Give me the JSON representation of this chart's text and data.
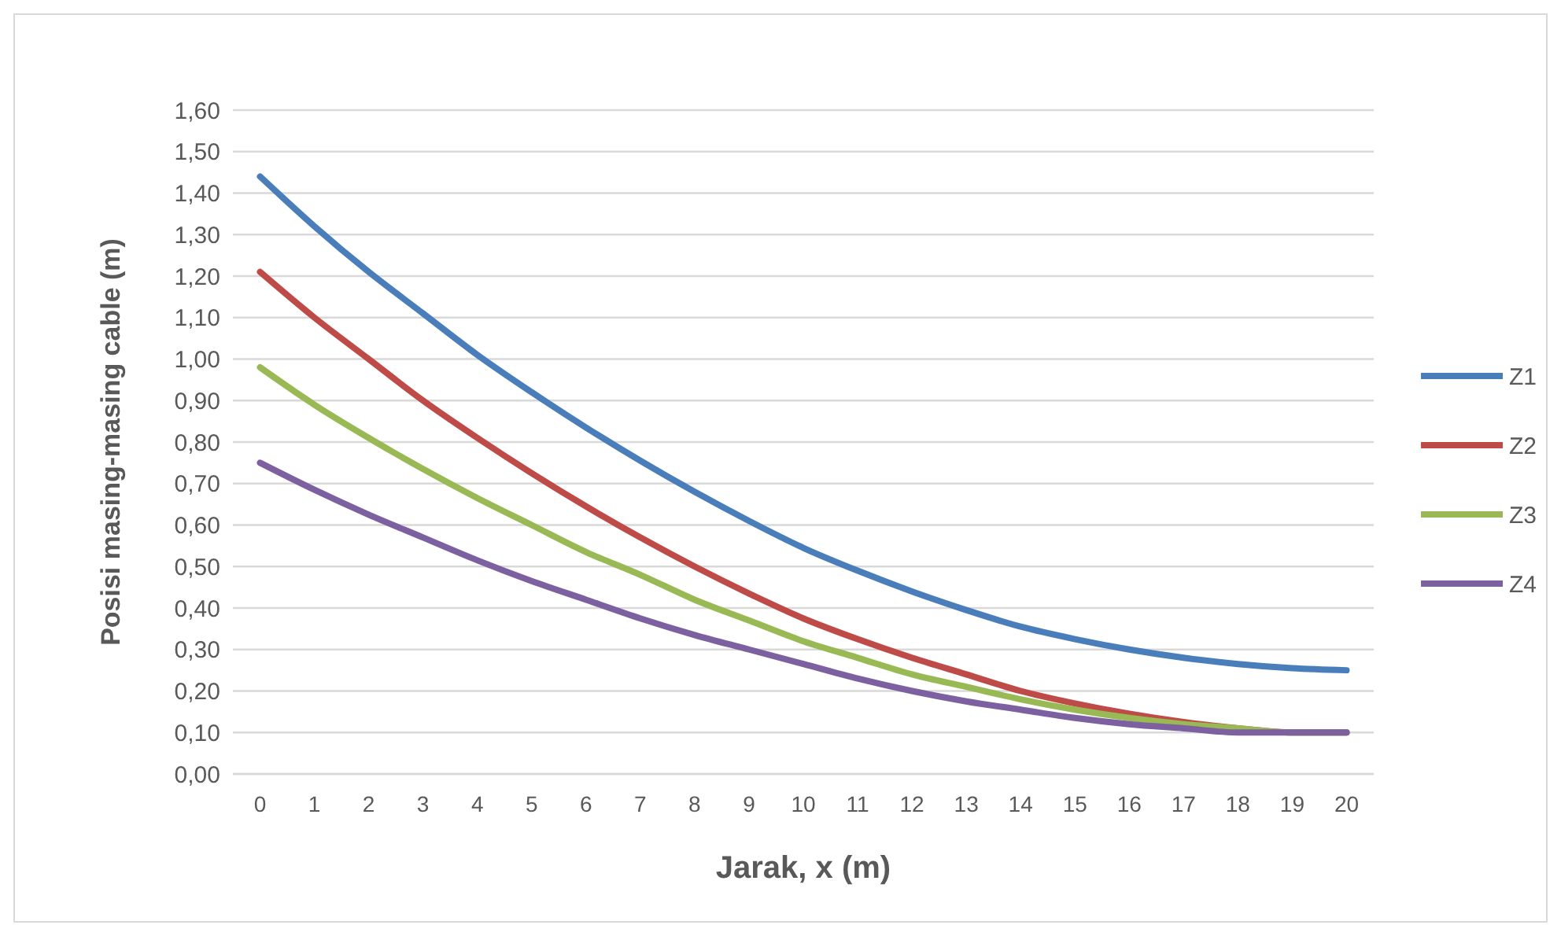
{
  "chart_data": {
    "type": "line",
    "xlabel": "Jarak, x (m)",
    "ylabel": "Posisi masing-masing cable (m)",
    "x": [
      0,
      1,
      2,
      3,
      4,
      5,
      6,
      7,
      8,
      9,
      10,
      11,
      12,
      13,
      14,
      15,
      16,
      17,
      18,
      19,
      20
    ],
    "xlim": [
      -0.5,
      20.5
    ],
    "xticks": [
      0,
      1,
      2,
      3,
      4,
      5,
      6,
      7,
      8,
      9,
      10,
      11,
      12,
      13,
      14,
      15,
      16,
      17,
      18,
      19,
      20
    ],
    "series": [
      {
        "name": "Z1",
        "color": "#4a7ebb",
        "values": [
          1.44,
          1.32,
          1.21,
          1.11,
          1.01,
          0.92,
          0.835,
          0.755,
          0.68,
          0.61,
          0.545,
          0.49,
          0.44,
          0.395,
          0.355,
          0.325,
          0.3,
          0.28,
          0.265,
          0.255,
          0.25
        ]
      },
      {
        "name": "Z2",
        "color": "#be4b48",
        "values": [
          1.21,
          1.1,
          1.0,
          0.9,
          0.81,
          0.725,
          0.645,
          0.57,
          0.5,
          0.435,
          0.375,
          0.325,
          0.28,
          0.24,
          0.2,
          0.17,
          0.145,
          0.125,
          0.11,
          0.1,
          0.1
        ]
      },
      {
        "name": "Z3",
        "color": "#98b954",
        "values": [
          0.98,
          0.89,
          0.81,
          0.735,
          0.665,
          0.6,
          0.535,
          0.48,
          0.42,
          0.37,
          0.32,
          0.28,
          0.24,
          0.21,
          0.18,
          0.155,
          0.135,
          0.12,
          0.11,
          0.1,
          0.1
        ]
      },
      {
        "name": "Z4",
        "color": "#7d60a0",
        "values": [
          0.75,
          0.685,
          0.625,
          0.57,
          0.515,
          0.465,
          0.42,
          0.375,
          0.335,
          0.3,
          0.265,
          0.23,
          0.2,
          0.175,
          0.155,
          0.135,
          0.12,
          0.11,
          0.1,
          0.1,
          0.1
        ]
      }
    ],
    "ylim": [
      0,
      1.6
    ],
    "yticks": [
      {
        "value": 0,
        "label": "0,00"
      },
      {
        "value": 0.1,
        "label": "0,10"
      },
      {
        "value": 0.2,
        "label": "0,20"
      },
      {
        "value": 0.3,
        "label": "0,30"
      },
      {
        "value": 0.4,
        "label": "0,40"
      },
      {
        "value": 0.5,
        "label": "0,50"
      },
      {
        "value": 0.6,
        "label": "0,60"
      },
      {
        "value": 0.7,
        "label": "0,70"
      },
      {
        "value": 0.8,
        "label": "0,80"
      },
      {
        "value": 0.9,
        "label": "0,90"
      },
      {
        "value": 1.0,
        "label": "1,00"
      },
      {
        "value": 1.1,
        "label": "1,10"
      },
      {
        "value": 1.2,
        "label": "1,20"
      },
      {
        "value": 1.3,
        "label": "1,30"
      },
      {
        "value": 1.4,
        "label": "1,40"
      },
      {
        "value": 1.5,
        "label": "1,50"
      },
      {
        "value": 1.6,
        "label": "1,60"
      }
    ],
    "grid": "y",
    "legend": "right",
    "marker": "none",
    "line_style": "solid"
  }
}
